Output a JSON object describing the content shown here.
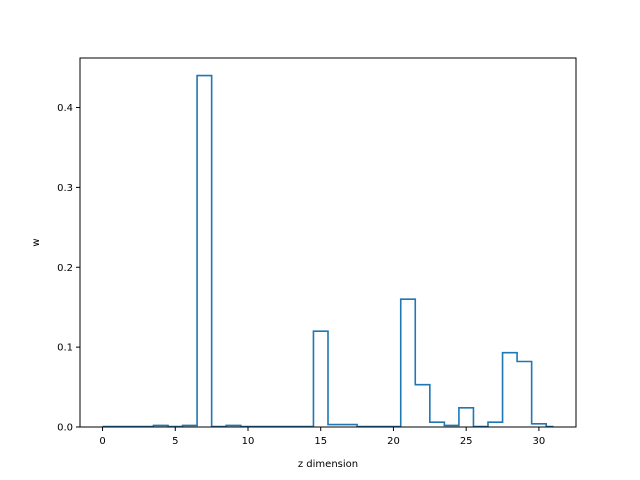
{
  "chart_data": {
    "type": "line",
    "drawstyle": "steps-mid",
    "title": "",
    "xlabel": "z dimension",
    "ylabel": "w",
    "xlim": [
      -1.55,
      32.55
    ],
    "ylim": [
      0,
      0.462
    ],
    "xticks": [
      0,
      5,
      10,
      15,
      20,
      25,
      30
    ],
    "yticks": [
      0.0,
      0.1,
      0.2,
      0.3,
      0.4
    ],
    "ytick_labels": [
      "0.0",
      "0.1",
      "0.2",
      "0.3",
      "0.4"
    ],
    "grid": false,
    "line_color": "#1f77b4",
    "series": [
      {
        "x": [
          0,
          1,
          2,
          3,
          4,
          5,
          6,
          7,
          8,
          9,
          10,
          11,
          12,
          13,
          14,
          15,
          16,
          17,
          18,
          19,
          20,
          21,
          22,
          23,
          24,
          25,
          26,
          27,
          28,
          29,
          30,
          31
        ],
        "values": [
          0.0005,
          0.0005,
          0.0005,
          0.0005,
          0.002,
          0.0005,
          0.002,
          0.44,
          0.0005,
          0.002,
          0.0005,
          0.0005,
          0.0005,
          0.0005,
          0.0005,
          0.12,
          0.003,
          0.003,
          0.0005,
          0.0005,
          0.0005,
          0.16,
          0.053,
          0.006,
          0.002,
          0.024,
          0.0005,
          0.006,
          0.093,
          0.082,
          0.004,
          0.0005
        ]
      }
    ]
  }
}
